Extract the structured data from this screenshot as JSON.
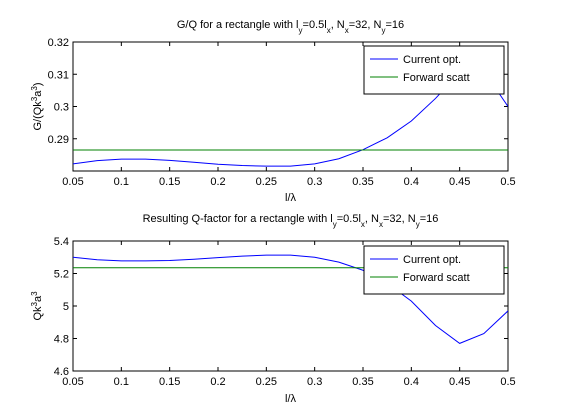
{
  "chart_data": [
    {
      "type": "line",
      "title": {
        "base": "G/Q for a rectangle with l",
        "s1": "y",
        "m1": "=0.5l",
        "s2": "x",
        "m2": ", N",
        "s3": "x",
        "m3": "=32, N",
        "s4": "y",
        "m4": "=16"
      },
      "xlabel": "l/λ",
      "ylabel": {
        "base": "G/(Qk",
        "s1": "3",
        "m1": "a",
        "s2": "3",
        "m2": ")"
      },
      "xlim": [
        0.05,
        0.5
      ],
      "ylim": [
        0.28,
        0.32
      ],
      "xticks": [
        0.05,
        0.1,
        0.15,
        0.2,
        0.25,
        0.3,
        0.35,
        0.4,
        0.45,
        0.5
      ],
      "xtick_labels": [
        "0.05",
        "0.1",
        "0.15",
        "0.2",
        "0.25",
        "0.3",
        "0.35",
        "0.4",
        "0.45",
        "0.5"
      ],
      "yticks": [
        0.29,
        0.3,
        0.31,
        0.32
      ],
      "ytick_labels": [
        "0.29",
        "0.3",
        "0.31",
        "0.32"
      ],
      "grid": false,
      "legend_position": "top-right",
      "series": [
        {
          "name": "Current opt.",
          "color": "#0000ff",
          "x": [
            0.05,
            0.075,
            0.1,
            0.125,
            0.15,
            0.175,
            0.2,
            0.225,
            0.25,
            0.275,
            0.3,
            0.325,
            0.35,
            0.375,
            0.4,
            0.425,
            0.45,
            0.475,
            0.5
          ],
          "y": [
            0.2822,
            0.2832,
            0.2837,
            0.2837,
            0.2833,
            0.2827,
            0.2821,
            0.2817,
            0.2815,
            0.2815,
            0.2822,
            0.2838,
            0.2866,
            0.2903,
            0.2955,
            0.3025,
            0.3105,
            0.311,
            0.3
          ]
        },
        {
          "name": "Forward scatt",
          "color": "#008000",
          "x": [
            0.05,
            0.5
          ],
          "y": [
            0.2865,
            0.2865
          ]
        }
      ]
    },
    {
      "type": "line",
      "title": {
        "base": "Resulting Q-factor for a rectangle with l",
        "s1": "y",
        "m1": "=0.5l",
        "s2": "x",
        "m2": ", N",
        "s3": "x",
        "m3": "=32, N",
        "s4": "y",
        "m4": "=16"
      },
      "xlabel": "l/λ",
      "ylabel": {
        "base": "Qk",
        "s1": "3",
        "m1": "a",
        "s2": "3",
        "m2": ""
      },
      "xlim": [
        0.05,
        0.5
      ],
      "ylim": [
        4.6,
        5.4
      ],
      "xticks": [
        0.05,
        0.1,
        0.15,
        0.2,
        0.25,
        0.3,
        0.35,
        0.4,
        0.45,
        0.5
      ],
      "xtick_labels": [
        "0.05",
        "0.1",
        "0.15",
        "0.2",
        "0.25",
        "0.3",
        "0.35",
        "0.4",
        "0.45",
        "0.5"
      ],
      "yticks": [
        4.6,
        4.8,
        5,
        5.2,
        5.4
      ],
      "ytick_labels": [
        "4.6",
        "4.8",
        "5",
        "5.2",
        "5.4"
      ],
      "grid": false,
      "legend_position": "top-right",
      "series": [
        {
          "name": "Current opt.",
          "color": "#0000ff",
          "x": [
            0.05,
            0.075,
            0.1,
            0.125,
            0.15,
            0.175,
            0.2,
            0.225,
            0.25,
            0.275,
            0.3,
            0.325,
            0.35,
            0.375,
            0.4,
            0.425,
            0.45,
            0.475,
            0.5
          ],
          "y": [
            5.3,
            5.285,
            5.278,
            5.278,
            5.28,
            5.288,
            5.298,
            5.307,
            5.313,
            5.313,
            5.3,
            5.27,
            5.22,
            5.14,
            5.03,
            4.88,
            4.77,
            4.83,
            4.97
          ]
        },
        {
          "name": "Forward scatt",
          "color": "#008000",
          "x": [
            0.05,
            0.5
          ],
          "y": [
            5.235,
            5.235
          ]
        }
      ]
    }
  ]
}
